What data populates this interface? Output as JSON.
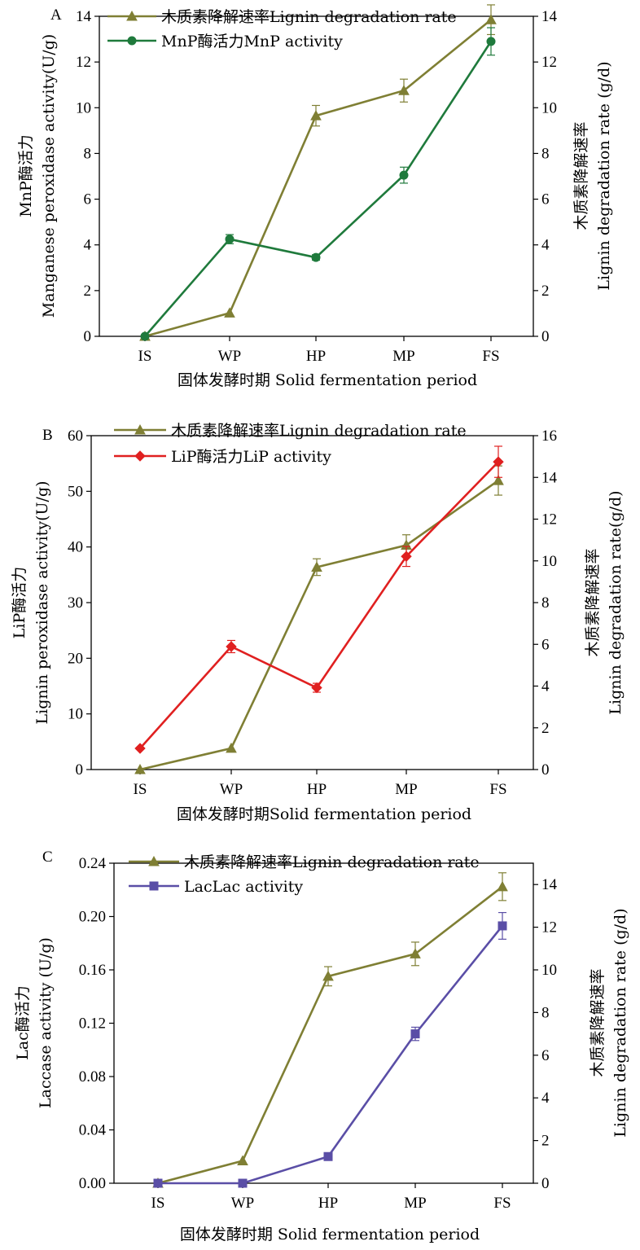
{
  "chart_data": [
    {
      "panel": "A",
      "type": "line",
      "categories": [
        "IS",
        "WP",
        "HP",
        "MP",
        "FS"
      ],
      "xlabel": "固体发酵时期 Solid fermentation period",
      "ylabel_left": [
        "MnP酶活力",
        "Manganese peroxidase activity(U/g)"
      ],
      "ylabel_right": [
        "木质素降解速率",
        "Lignin degradation rate (g/d)"
      ],
      "ylim_left": [
        0,
        14
      ],
      "yticks_left": [
        "0",
        "2",
        "4",
        "6",
        "8",
        "10",
        "12",
        "14"
      ],
      "ylim_right": [
        0,
        14
      ],
      "yticks_right": [
        "0",
        "2",
        "4",
        "6",
        "8",
        "10",
        "12",
        "14"
      ],
      "legend_position": "top-left",
      "series": [
        {
          "name": "木质素降解速率Lignin degradation rate",
          "axis": "right",
          "color": "#7f7f34",
          "marker": "triangle",
          "values": [
            0,
            1.02,
            9.65,
            10.75,
            13.85
          ],
          "errors": [
            0,
            0,
            0.45,
            0.5,
            0.65
          ]
        },
        {
          "name": "MnP酶活力MnP activity",
          "axis": "left",
          "color": "#1f7a3c",
          "marker": "circle",
          "values": [
            0,
            4.25,
            3.45,
            7.05,
            12.9
          ],
          "errors": [
            0,
            0.2,
            0.12,
            0.35,
            0.6
          ]
        }
      ]
    },
    {
      "panel": "B",
      "type": "line",
      "categories": [
        "IS",
        "WP",
        "HP",
        "MP",
        "FS"
      ],
      "xlabel": "固体发酵时期Solid fermentation period",
      "ylabel_left": [
        "LiP酶活力",
        "Lignin peroxidase activity(U/g)"
      ],
      "ylabel_right": [
        "木质素降解速率",
        "Lignin degradation rate(g/d)"
      ],
      "ylim_left": [
        0,
        60
      ],
      "yticks_left": [
        "0",
        "10",
        "20",
        "30",
        "40",
        "50",
        "60"
      ],
      "ylim_right": [
        0,
        16
      ],
      "yticks_right": [
        "0",
        "2",
        "4",
        "6",
        "8",
        "10",
        "12",
        "14",
        "16"
      ],
      "legend_position": "top-left",
      "series": [
        {
          "name": "木质素降解速率Lignin degradation rate",
          "axis": "right",
          "color": "#7f7f34",
          "marker": "triangle",
          "values": [
            0,
            1.02,
            9.7,
            10.75,
            13.85
          ],
          "errors": [
            0,
            0,
            0.4,
            0.5,
            0.7
          ]
        },
        {
          "name": "LiP酶活力LiP activity",
          "axis": "left",
          "color": "#e02020",
          "marker": "diamond",
          "values": [
            3.8,
            22.1,
            14.7,
            38.3,
            55.3
          ],
          "errors": [
            0,
            1.1,
            0.8,
            1.8,
            2.8
          ]
        }
      ]
    },
    {
      "panel": "C",
      "type": "line",
      "categories": [
        "IS",
        "WP",
        "HP",
        "MP",
        "FS"
      ],
      "xlabel": "固体发酵时期 Solid fermentation period",
      "ylabel_left": [
        "Lac酶活力",
        "Laccase activity (U/g)"
      ],
      "ylabel_right": [
        "木质素降解速率",
        "Lignin degradation rate (g/d)"
      ],
      "ylim_left": [
        0,
        0.24
      ],
      "yticks_left": [
        "0.00",
        "0.04",
        "0.08",
        "0.12",
        "0.16",
        "0.20",
        "0.24"
      ],
      "ylim_right": [
        0,
        15
      ],
      "yticks_right": [
        "0",
        "2",
        "4",
        "6",
        "8",
        "10",
        "12",
        "14"
      ],
      "legend_position": "top-left",
      "series": [
        {
          "name": "木质素降解速率Lignin degradation rate",
          "axis": "right",
          "color": "#7f7f34",
          "marker": "triangle",
          "values": [
            0,
            1.05,
            9.7,
            10.75,
            13.9
          ],
          "errors": [
            0,
            0,
            0.45,
            0.55,
            0.65
          ]
        },
        {
          "name": "LacLac activity",
          "axis": "left",
          "color": "#5a4ea6",
          "marker": "square",
          "values": [
            0,
            0,
            0.02,
            0.112,
            0.193
          ],
          "errors": [
            0,
            0,
            0,
            0.005,
            0.01
          ]
        }
      ]
    }
  ]
}
